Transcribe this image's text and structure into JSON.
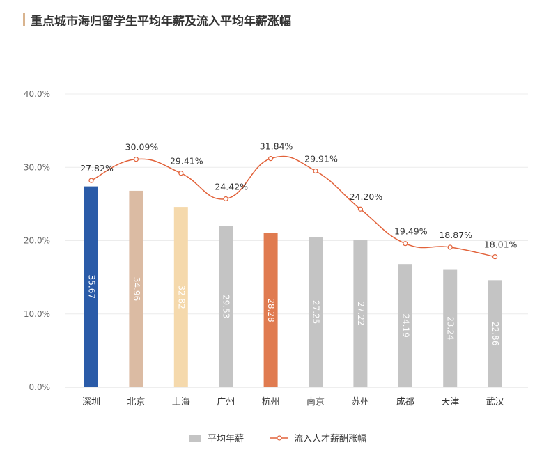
{
  "title": "重点城市海归留学生平均年薪及流入平均年薪涨幅",
  "colors": {
    "title_accent": "#d9b48f",
    "bar_default": "#c4c4c4",
    "line": "#e2623a"
  },
  "chart_data": {
    "type": "bar",
    "categories": [
      "深圳",
      "北京",
      "上海",
      "广州",
      "杭州",
      "南京",
      "苏州",
      "成都",
      "天津",
      "武汉"
    ],
    "y_axis": {
      "min": 0,
      "max": 0.4,
      "ticks": [
        0,
        0.1,
        0.2,
        0.3,
        0.4
      ],
      "tick_labels": [
        "0.0%",
        "10.0%",
        "20.0%",
        "30.0%",
        "40.0%"
      ]
    },
    "grid": true,
    "legend_position": "bottom-center",
    "series": [
      {
        "name": "平均年薪",
        "type": "bar",
        "values": [
          35.67,
          34.96,
          32.82,
          29.53,
          28.28,
          27.25,
          27.22,
          24.19,
          23.24,
          22.86
        ],
        "labels": [
          "35.67",
          "34.96",
          "32.82",
          "29.53",
          "28.28",
          "27.25",
          "27.22",
          "24.19",
          "23.24",
          "22.86"
        ],
        "bar_heights_on_axis": [
          0.274,
          0.268,
          0.246,
          0.22,
          0.21,
          0.205,
          0.201,
          0.168,
          0.161,
          0.146
        ],
        "colors": [
          "#2a5ba8",
          "#dbbba3",
          "#f5d9ac",
          "#c4c4c4",
          "#e07b50",
          "#c4c4c4",
          "#c4c4c4",
          "#c4c4c4",
          "#c4c4c4",
          "#c4c4c4"
        ]
      },
      {
        "name": "流入人才薪酬涨幅",
        "type": "line",
        "values": [
          0.2782,
          0.3009,
          0.2941,
          0.2442,
          0.3184,
          0.2991,
          0.242,
          0.1949,
          0.1887,
          0.1801
        ],
        "plotted_values": [
          0.282,
          0.311,
          0.292,
          0.257,
          0.312,
          0.295,
          0.243,
          0.196,
          0.191,
          0.178
        ],
        "labels": [
          "27.82%",
          "30.09%",
          "29.41%",
          "24.42%",
          "31.84%",
          "29.91%",
          "24.20%",
          "19.49%",
          "18.87%",
          "18.01%"
        ]
      }
    ]
  }
}
